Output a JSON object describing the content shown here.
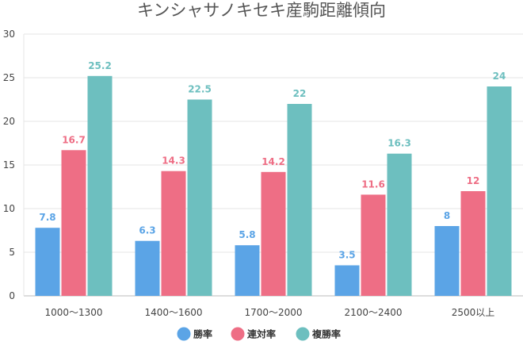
{
  "chart_data": {
    "type": "bar",
    "title": "キンシャサノキセキ産駒距離傾向",
    "categories": [
      "1000～1300",
      "1400～1600",
      "1700～2000",
      "2100～2400",
      "2500以上"
    ],
    "series": [
      {
        "name": "勝率",
        "color": "#5BA4E6",
        "values": [
          7.8,
          6.3,
          5.8,
          3.5,
          8
        ]
      },
      {
        "name": "連対率",
        "color": "#EE6E85",
        "values": [
          16.7,
          14.3,
          14.2,
          11.6,
          12
        ]
      },
      {
        "name": "複勝率",
        "color": "#6DBFBF",
        "values": [
          25.2,
          22.5,
          22,
          16.3,
          24
        ]
      }
    ],
    "ylim": [
      0,
      30
    ],
    "yticks": [
      0,
      5,
      10,
      15,
      20,
      25,
      30
    ],
    "grid": true,
    "legend_position": "bottom"
  }
}
